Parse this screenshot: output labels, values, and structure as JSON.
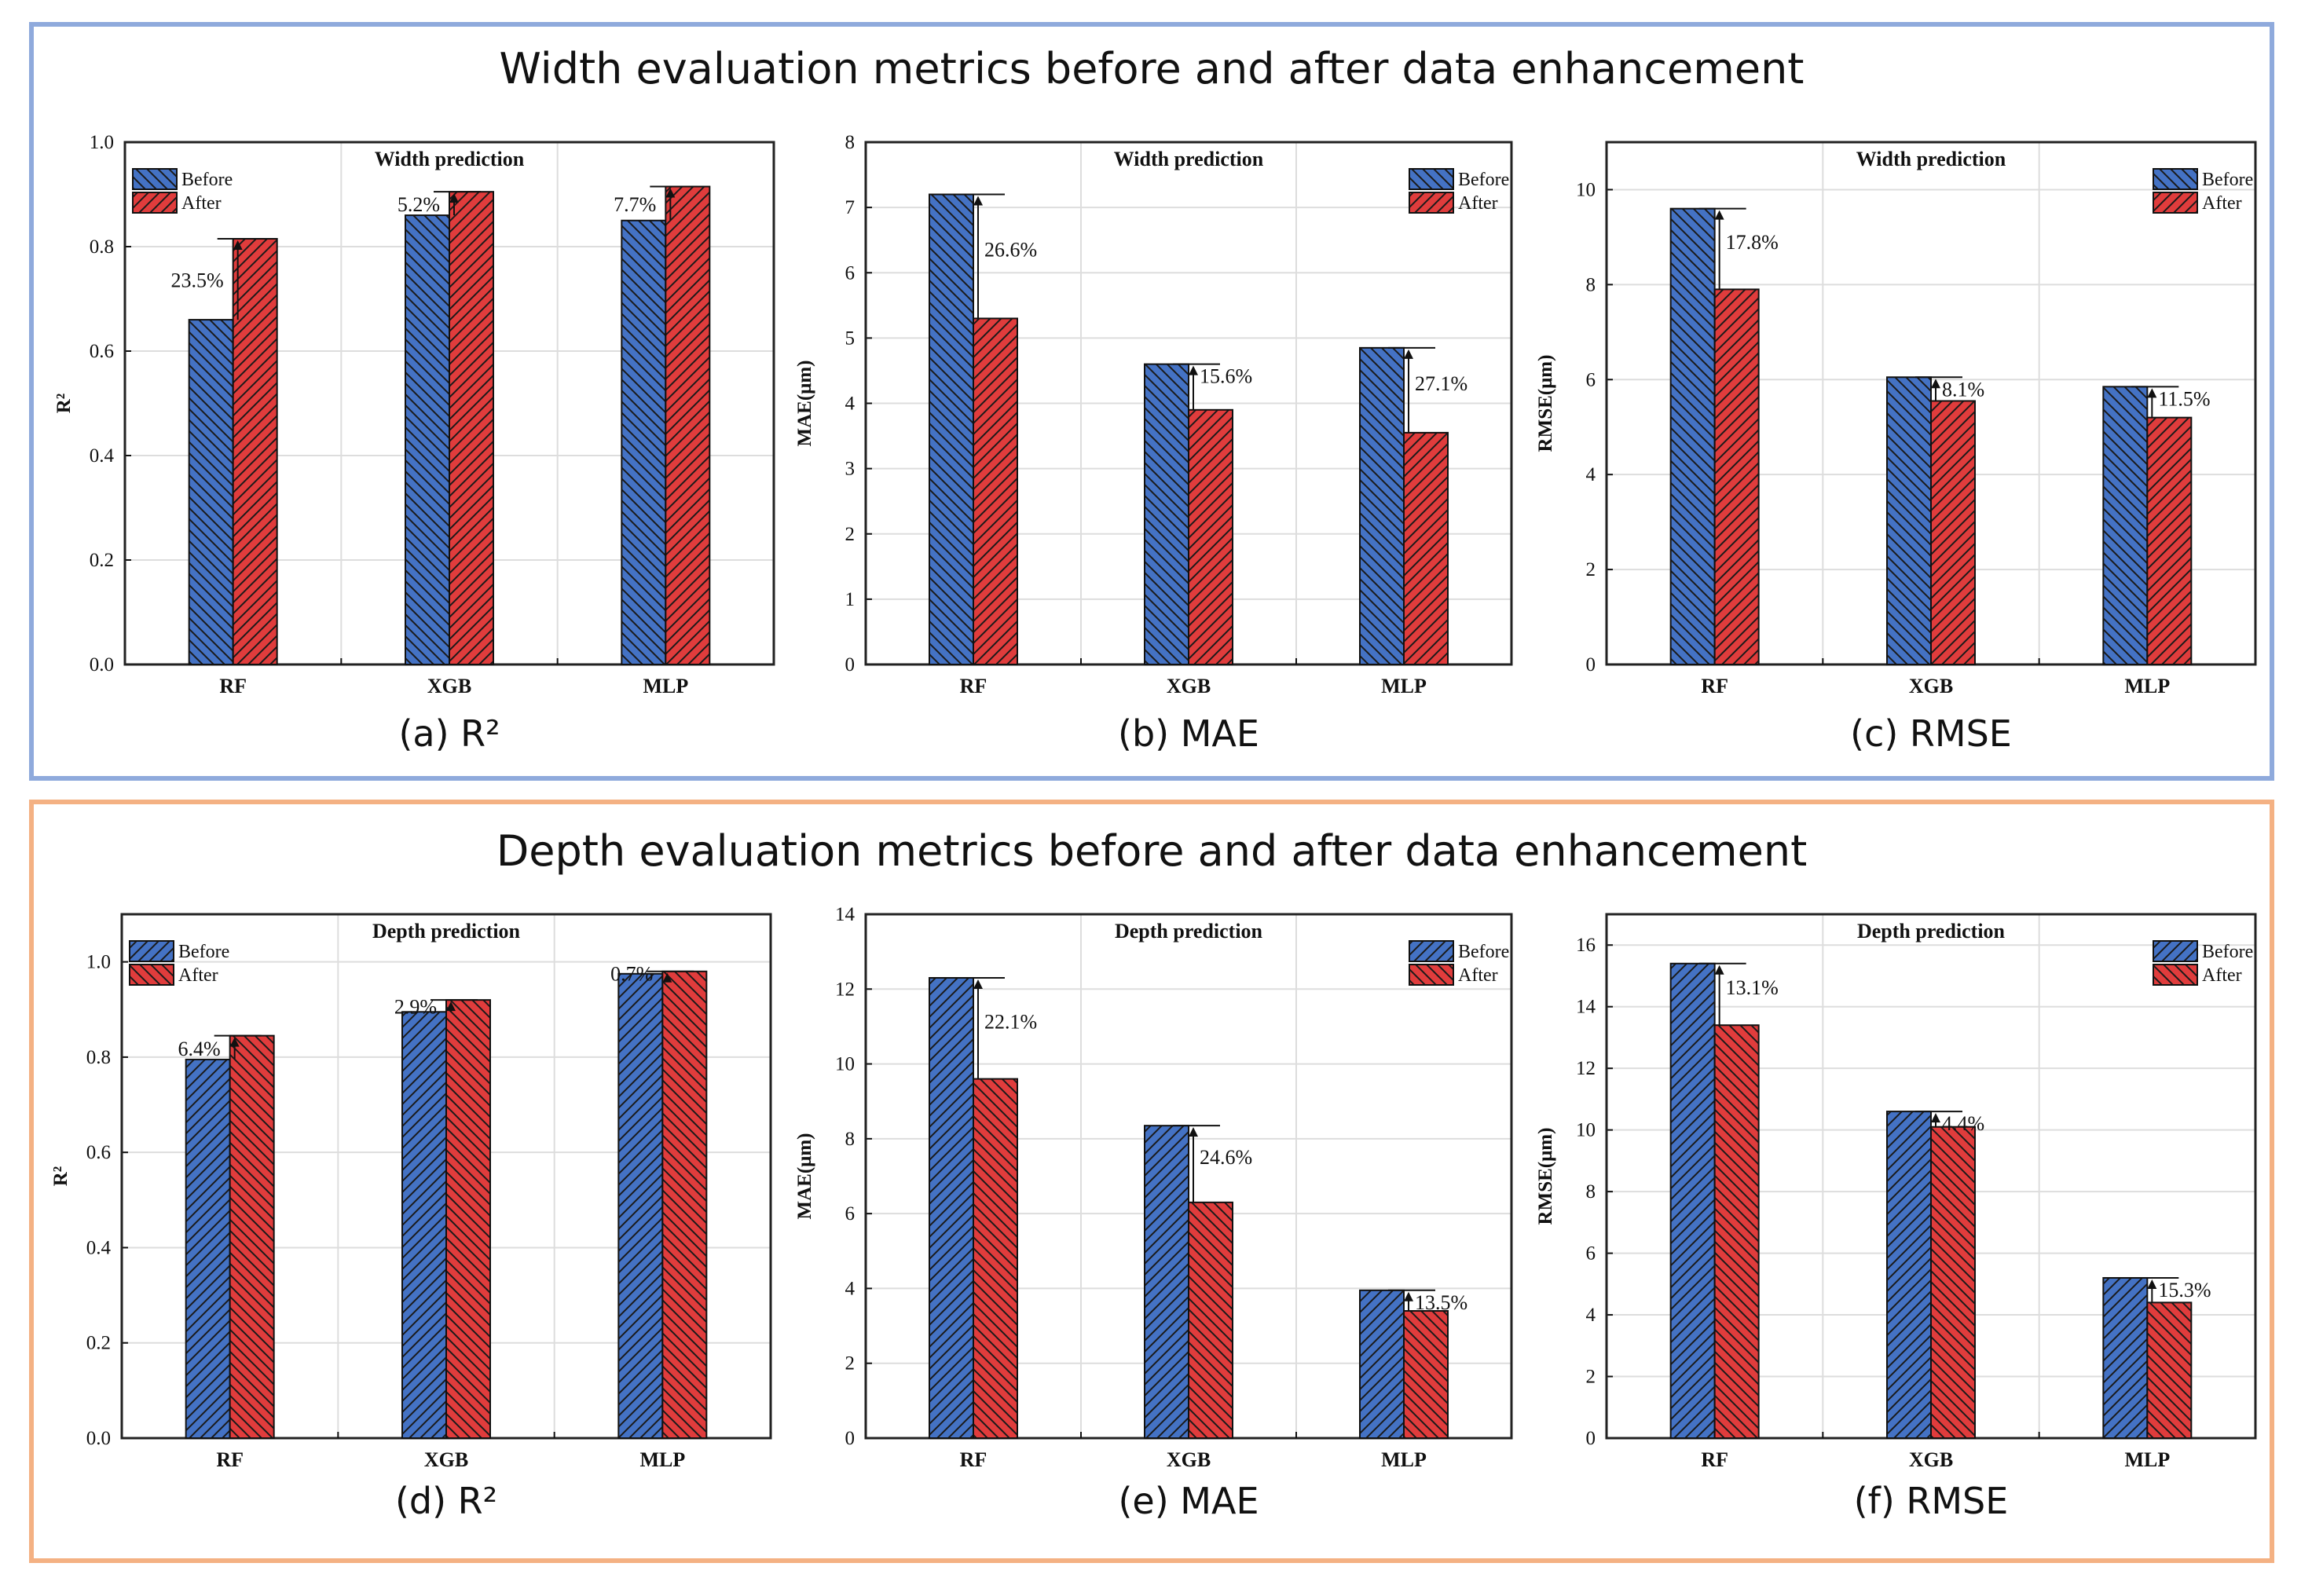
{
  "sections": [
    {
      "title": "Width evaluation metrics before and after data enhancement",
      "color": "#8faadc"
    },
    {
      "title": "Depth evaluation metrics before and after data enhancement",
      "color": "#f4b183"
    }
  ],
  "colors": {
    "before": "#4472c4",
    "after": "#e03c3c"
  },
  "chart_data": [
    {
      "type": "bar",
      "caption": "(a) R²",
      "title": "Width prediction",
      "ylabel": "R²",
      "ylim": [
        0,
        1.0
      ],
      "yticks": [
        "0.0",
        "0.2",
        "0.4",
        "0.6",
        "0.8",
        "1.0"
      ],
      "categories": [
        "RF",
        "XGB",
        "MLP"
      ],
      "legend": "top-left",
      "grid": true,
      "series": [
        {
          "name": "Before",
          "values": [
            0.66,
            0.86,
            0.85
          ]
        },
        {
          "name": "After",
          "values": [
            0.815,
            0.905,
            0.915
          ]
        }
      ],
      "annotations": [
        "23.5%",
        "5.2%",
        "7.7%"
      ]
    },
    {
      "type": "bar",
      "caption": "(b) MAE",
      "title": "Width prediction",
      "ylabel": "MAE(μm)",
      "ylim": [
        0,
        8
      ],
      "yticks": [
        "0",
        "1",
        "2",
        "3",
        "4",
        "5",
        "6",
        "7",
        "8"
      ],
      "categories": [
        "RF",
        "XGB",
        "MLP"
      ],
      "legend": "top-right",
      "grid": true,
      "series": [
        {
          "name": "Before",
          "values": [
            7.2,
            4.6,
            4.85
          ]
        },
        {
          "name": "After",
          "values": [
            5.3,
            3.9,
            3.55
          ]
        }
      ],
      "annotations": [
        "26.6%",
        "15.6%",
        "27.1%"
      ]
    },
    {
      "type": "bar",
      "caption": "(c) RMSE",
      "title": "Width prediction",
      "ylabel": "RMSE(μm)",
      "ylim": [
        0,
        11
      ],
      "yticks": [
        "0",
        "2",
        "4",
        "6",
        "8",
        "10"
      ],
      "categories": [
        "RF",
        "XGB",
        "MLP"
      ],
      "legend": "top-right",
      "grid": true,
      "series": [
        {
          "name": "Before",
          "values": [
            9.6,
            6.05,
            5.85
          ]
        },
        {
          "name": "After",
          "values": [
            7.9,
            5.55,
            5.2
          ]
        }
      ],
      "annotations": [
        "17.8%",
        "8.1%",
        "11.5%"
      ]
    },
    {
      "type": "bar",
      "caption": "(d) R²",
      "title": "Depth prediction",
      "ylabel": "R²",
      "ylim": [
        0,
        1.1
      ],
      "yticks": [
        "0.0",
        "0.2",
        "0.4",
        "0.6",
        "0.8",
        "1.0"
      ],
      "categories": [
        "RF",
        "XGB",
        "MLP"
      ],
      "legend": "top-left",
      "grid": true,
      "series": [
        {
          "name": "Before",
          "values": [
            0.795,
            0.895,
            0.975
          ]
        },
        {
          "name": "After",
          "values": [
            0.845,
            0.92,
            0.98
          ]
        }
      ],
      "annotations": [
        "6.4%",
        "2.9%",
        "0.7%"
      ]
    },
    {
      "type": "bar",
      "caption": "(e) MAE",
      "title": "Depth prediction",
      "ylabel": "MAE(μm)",
      "ylim": [
        0,
        14
      ],
      "yticks": [
        "0",
        "2",
        "4",
        "6",
        "8",
        "10",
        "12",
        "14"
      ],
      "categories": [
        "RF",
        "XGB",
        "MLP"
      ],
      "legend": "top-right",
      "grid": true,
      "series": [
        {
          "name": "Before",
          "values": [
            12.3,
            8.35,
            3.95
          ]
        },
        {
          "name": "After",
          "values": [
            9.6,
            6.3,
            3.4
          ]
        }
      ],
      "annotations": [
        "22.1%",
        "24.6%",
        "13.5%"
      ]
    },
    {
      "type": "bar",
      "caption": "(f) RMSE",
      "title": "Depth prediction",
      "ylabel": "RMSE(μm)",
      "ylim": [
        0,
        17
      ],
      "yticks": [
        "0",
        "2",
        "4",
        "6",
        "8",
        "10",
        "12",
        "14",
        "16"
      ],
      "categories": [
        "RF",
        "XGB",
        "MLP"
      ],
      "legend": "top-right",
      "grid": true,
      "series": [
        {
          "name": "Before",
          "values": [
            15.4,
            10.6,
            5.2
          ]
        },
        {
          "name": "After",
          "values": [
            13.4,
            10.1,
            4.4
          ]
        }
      ],
      "annotations": [
        "13.1%",
        "4.4%",
        "15.3%"
      ]
    }
  ]
}
